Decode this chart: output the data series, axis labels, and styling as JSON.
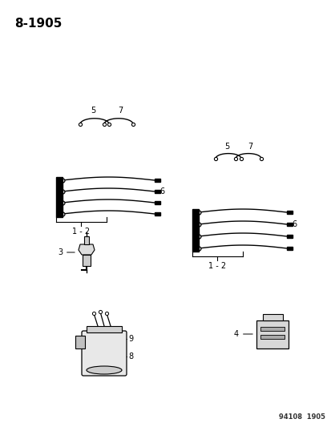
{
  "title": "8-1905",
  "footer": "94108  1905",
  "bg_color": "#ffffff",
  "text_color": "#000000",
  "line_color": "#000000",
  "title_fontsize": 11,
  "label_fontsize": 7,
  "footer_fontsize": 6
}
